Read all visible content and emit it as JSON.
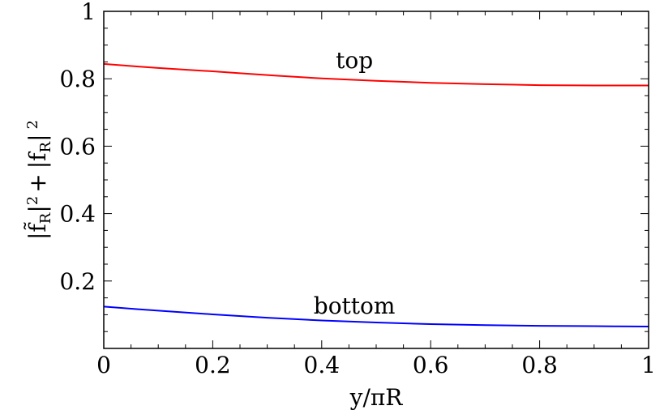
{
  "chart_data": {
    "type": "line",
    "xlabel": "y/πR",
    "ylabel": "|f̃R|² + |fR|²",
    "ylabel_parts": {
      "open1": "|",
      "f1": "f̃",
      "sub1": "R",
      "close1": "|",
      "sup1": "2",
      "plus": "+",
      "open2": "|",
      "f2": "f",
      "sub2": "R",
      "close2": "|",
      "sup2": "2"
    },
    "xlim": [
      0,
      1
    ],
    "ylim": [
      0,
      1
    ],
    "x_ticks": [
      0,
      0.2,
      0.4,
      0.6,
      0.8,
      1
    ],
    "x_tick_labels": [
      "0",
      "0.2",
      "0.4",
      "0.6",
      "0.8",
      "1"
    ],
    "y_ticks": [
      0.2,
      0.4,
      0.6,
      0.8,
      1
    ],
    "y_tick_labels": [
      "0.2",
      "0.4",
      "0.6",
      "0.8",
      "1"
    ],
    "grid": false,
    "series": [
      {
        "name": "top",
        "color": "#ff0000",
        "x": [
          0,
          0.1,
          0.2,
          0.3,
          0.4,
          0.5,
          0.6,
          0.7,
          0.8,
          0.9,
          1.0
        ],
        "y": [
          0.844,
          0.832,
          0.822,
          0.811,
          0.801,
          0.794,
          0.788,
          0.784,
          0.781,
          0.78,
          0.78
        ]
      },
      {
        "name": "bottom",
        "color": "#0000ff",
        "x": [
          0,
          0.1,
          0.2,
          0.3,
          0.4,
          0.5,
          0.6,
          0.7,
          0.8,
          0.9,
          1.0
        ],
        "y": [
          0.124,
          0.112,
          0.101,
          0.091,
          0.083,
          0.077,
          0.072,
          0.069,
          0.067,
          0.066,
          0.065
        ]
      }
    ],
    "annotations": [
      {
        "text": "top",
        "x": 0.46,
        "y": 0.832
      },
      {
        "text": "bottom",
        "x": 0.46,
        "y": 0.103
      }
    ]
  }
}
